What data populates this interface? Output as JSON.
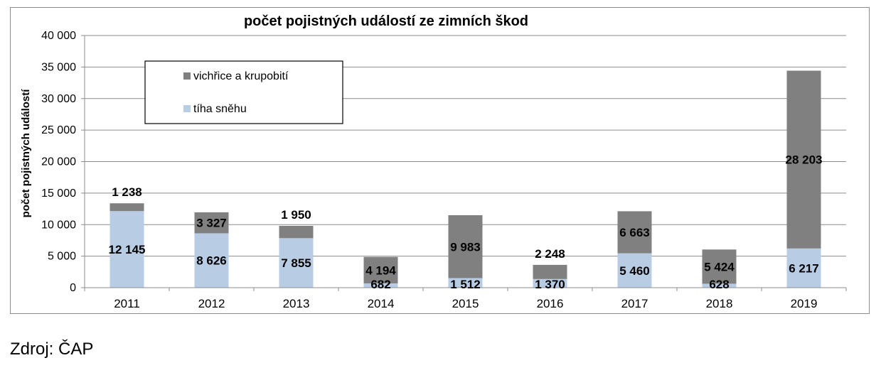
{
  "chart_data": {
    "type": "bar",
    "stacked": true,
    "title": "počet pojistných událostí ze zimních škod",
    "xlabel": "",
    "ylabel": "počet pojistných událostí",
    "categories": [
      "2011",
      "2012",
      "2013",
      "2014",
      "2015",
      "2016",
      "2017",
      "2018",
      "2019"
    ],
    "ylim": [
      0,
      40000
    ],
    "yticks": [
      0,
      5000,
      10000,
      15000,
      20000,
      25000,
      30000,
      35000,
      40000
    ],
    "ytick_labels": [
      "0",
      "5 000",
      "10 000",
      "15 000",
      "20 000",
      "25 000",
      "30 000",
      "35 000",
      "40 000"
    ],
    "grid": true,
    "legend_position": "top-left",
    "series": [
      {
        "name": "tíha sněhu",
        "color": "#b8cce4",
        "values": [
          12145,
          8626,
          7855,
          682,
          1512,
          1370,
          5460,
          628,
          6217
        ],
        "labels": [
          "12 145",
          "8 626",
          "7 855",
          "682",
          "1 512",
          "1 370",
          "5 460",
          "628",
          "6 217"
        ]
      },
      {
        "name": "vichřice a krupobití",
        "color": "#808080",
        "values": [
          1238,
          3327,
          1950,
          4194,
          9983,
          2248,
          6663,
          5424,
          28203
        ],
        "labels": [
          "1 238",
          "3 327",
          "1 950",
          "4 194",
          "9 983",
          "2 248",
          "6 663",
          "5 424",
          "28 203"
        ]
      }
    ]
  },
  "footer": {
    "source": "Zdroj: ČAP"
  }
}
